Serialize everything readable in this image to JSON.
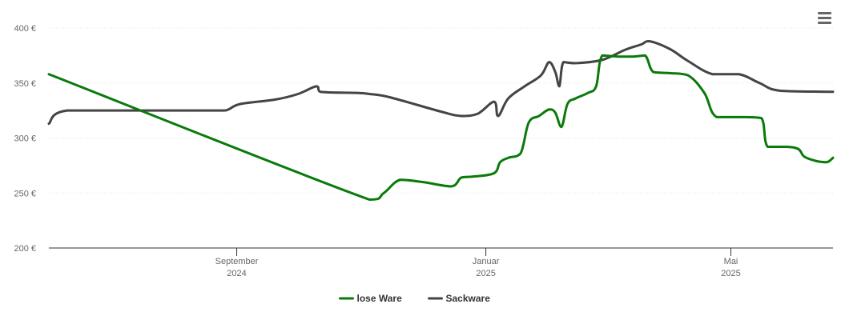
{
  "chart_data": {
    "type": "line",
    "title": "",
    "xlabel": "",
    "ylabel": "",
    "ylim": [
      200,
      400
    ],
    "xlim": [
      "2024-06-01",
      "2025-06-20"
    ],
    "grid": true,
    "legend_position": "bottom-center",
    "y_ticks": [
      {
        "value": 200,
        "label": "200 €"
      },
      {
        "value": 250,
        "label": "250 €"
      },
      {
        "value": 300,
        "label": "300 €"
      },
      {
        "value": 350,
        "label": "350 €"
      },
      {
        "value": 400,
        "label": "400 €"
      }
    ],
    "x_ticks": [
      {
        "date": "2024-09-01",
        "month": "September",
        "year": "2024"
      },
      {
        "date": "2025-01-01",
        "month": "Januar",
        "year": "2025"
      },
      {
        "date": "2025-05-01",
        "month": "Mai",
        "year": "2025"
      }
    ],
    "series": [
      {
        "name": "lose Ware",
        "color": "#0a7a0a",
        "points": [
          [
            "2024-06-01",
            358
          ],
          [
            "2024-11-05",
            244
          ],
          [
            "2024-11-12",
            250
          ],
          [
            "2024-11-20",
            262
          ],
          [
            "2024-12-01",
            260
          ],
          [
            "2024-12-15",
            256
          ],
          [
            "2024-12-20",
            264
          ],
          [
            "2024-12-26",
            265
          ],
          [
            "2025-01-05",
            268
          ],
          [
            "2025-01-08",
            278
          ],
          [
            "2025-01-12",
            282
          ],
          [
            "2025-01-18",
            286
          ],
          [
            "2025-01-22",
            314
          ],
          [
            "2025-01-27",
            320
          ],
          [
            "2025-02-01",
            326
          ],
          [
            "2025-02-04",
            323
          ],
          [
            "2025-02-07",
            310
          ],
          [
            "2025-02-10",
            331
          ],
          [
            "2025-02-14",
            336
          ],
          [
            "2025-02-20",
            341
          ],
          [
            "2025-02-24",
            347
          ],
          [
            "2025-02-27",
            375
          ],
          [
            "2025-03-07",
            374
          ],
          [
            "2025-03-14",
            374
          ],
          [
            "2025-03-20",
            375
          ],
          [
            "2025-03-24",
            360
          ],
          [
            "2025-04-01",
            359
          ],
          [
            "2025-04-10",
            357
          ],
          [
            "2025-04-18",
            341
          ],
          [
            "2025-04-24",
            319
          ],
          [
            "2025-05-08",
            319
          ],
          [
            "2025-05-16",
            318
          ],
          [
            "2025-05-19",
            292
          ],
          [
            "2025-05-28",
            292
          ],
          [
            "2025-06-03",
            290
          ],
          [
            "2025-06-06",
            283
          ],
          [
            "2025-06-12",
            279
          ],
          [
            "2025-06-17",
            278
          ],
          [
            "2025-06-20",
            282
          ]
        ]
      },
      {
        "name": "Sackware",
        "color": "#444444",
        "points": [
          [
            "2024-06-01",
            313
          ],
          [
            "2024-06-10",
            325
          ],
          [
            "2024-08-25",
            325
          ],
          [
            "2024-08-28",
            326
          ],
          [
            "2024-09-03",
            331
          ],
          [
            "2024-09-20",
            335
          ],
          [
            "2024-10-01",
            340
          ],
          [
            "2024-10-10",
            347
          ],
          [
            "2024-10-12",
            342
          ],
          [
            "2024-10-30",
            341
          ],
          [
            "2024-11-05",
            340
          ],
          [
            "2024-11-15",
            337
          ],
          [
            "2024-12-10",
            324
          ],
          [
            "2024-12-20",
            320
          ],
          [
            "2024-12-28",
            322
          ],
          [
            "2025-01-05",
            333
          ],
          [
            "2025-01-07",
            320
          ],
          [
            "2025-01-12",
            336
          ],
          [
            "2025-01-20",
            347
          ],
          [
            "2025-01-28",
            357
          ],
          [
            "2025-02-01",
            369
          ],
          [
            "2025-02-04",
            360
          ],
          [
            "2025-02-06",
            347
          ],
          [
            "2025-02-08",
            369
          ],
          [
            "2025-02-14",
            368
          ],
          [
            "2025-02-27",
            371
          ],
          [
            "2025-03-10",
            380
          ],
          [
            "2025-03-18",
            385
          ],
          [
            "2025-03-22",
            388
          ],
          [
            "2025-04-01",
            381
          ],
          [
            "2025-04-10",
            370
          ],
          [
            "2025-04-22",
            358
          ],
          [
            "2025-05-05",
            358
          ],
          [
            "2025-05-15",
            350
          ],
          [
            "2025-05-25",
            343
          ],
          [
            "2025-06-20",
            342
          ]
        ]
      }
    ]
  },
  "toolbar": {
    "menu_icon": "hamburger-menu-icon"
  }
}
